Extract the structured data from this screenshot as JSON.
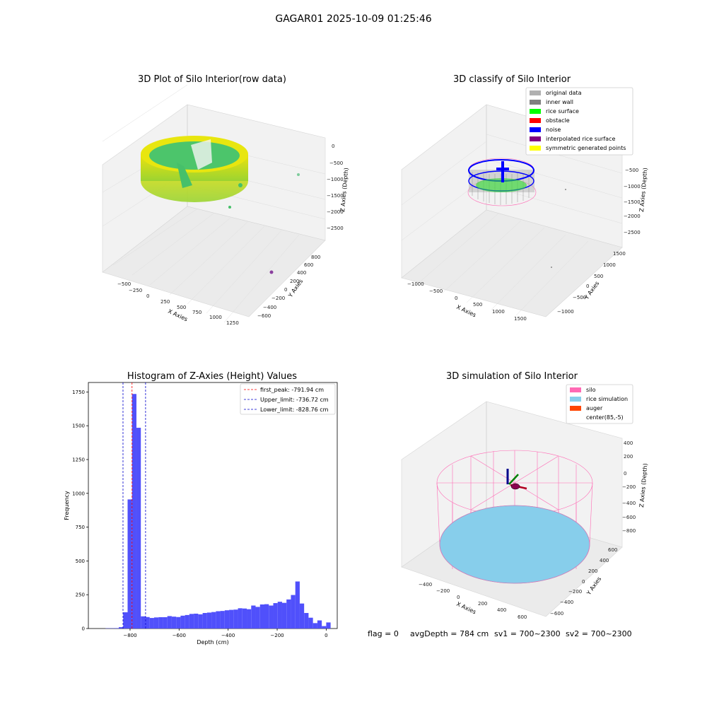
{
  "figure": {
    "suptitle": "GAGAR01 2025-10-09 01:25:46",
    "footer": {
      "flag": "flag = 0",
      "avg_depth": "avgDepth = 784 cm",
      "sv1": "sv1 = 700~2300",
      "sv2": "sv2 = 700~2300"
    }
  },
  "colors": {
    "bar_fill": "#5050fb",
    "bar_edge": "#3a3af0",
    "first_peak_line": "#ff0000",
    "limit_line": "#0000cc",
    "rice_green": "#34c26a",
    "rice_yellow": "#e6e619",
    "silo_pink": "#ff69b4",
    "rice_sim": "#87ceeb",
    "auger": "#ff4500",
    "noise_blue": "#0000ff",
    "inner_wall_gray": "#888888"
  },
  "panel1": {
    "title": "3D Plot of Silo Interior(row data)",
    "xlabel": "X Axies",
    "ylabel": "Y Axies",
    "zlabel": "Z Axies (Depth)",
    "xticks": [
      "−500",
      "−250",
      "0",
      "250",
      "500",
      "750",
      "1000",
      "1250"
    ],
    "yticks": [
      "−600",
      "−400",
      "−200",
      "0",
      "200",
      "400",
      "600",
      "800"
    ],
    "zticks": [
      "0",
      "−500",
      "−1000",
      "−1500",
      "−2000",
      "−2500"
    ]
  },
  "panel2": {
    "title": "3D classify of Silo Interior",
    "xlabel": "X Axies",
    "ylabel": "Y Axies",
    "zlabel": "Z Axies (Depth)",
    "xticks": [
      "−1000",
      "−500",
      "0",
      "500",
      "1000",
      "1500"
    ],
    "yticks": [
      "−1000",
      "−500",
      "0",
      "500",
      "1000",
      "1500"
    ],
    "zticks": [
      "0",
      "−500",
      "−1000",
      "−1500",
      "−2000",
      "−2500"
    ],
    "legend": [
      {
        "label": "original data",
        "color": "#b0b0b0"
      },
      {
        "label": "inner wall",
        "color": "#808080"
      },
      {
        "label": "rice surface",
        "color": "#00ff00"
      },
      {
        "label": "obstacle",
        "color": "#ff0000"
      },
      {
        "label": "noise",
        "color": "#0000ff"
      },
      {
        "label": "interpolated rice surface",
        "color": "#800080"
      },
      {
        "label": "symmetric generated points",
        "color": "#ffff00"
      }
    ]
  },
  "panel4": {
    "title": "3D simulation of Silo Interior",
    "xlabel": "X Axies",
    "ylabel": "Y Axies",
    "zlabel": "Z Axies (Depth)",
    "xticks": [
      "−400",
      "−200",
      "0",
      "200",
      "400",
      "600"
    ],
    "yticks": [
      "−600",
      "−400",
      "−200",
      "0",
      "200",
      "400",
      "600"
    ],
    "zticks": [
      "400",
      "200",
      "0",
      "−200",
      "−400",
      "−600",
      "−800"
    ],
    "legend": [
      {
        "label": "silo",
        "color": "#ff69b4"
      },
      {
        "label": "rice simulation",
        "color": "#87ceeb"
      },
      {
        "label": "auger",
        "color": "#ff4500"
      },
      {
        "label": "center(85,-5)",
        "color": ""
      }
    ]
  },
  "chart_data": [
    {
      "type": "bar",
      "title": "Histogram of Z-Axies (Height) Values",
      "xlabel": "Depth (cm)",
      "ylabel": "Frequency",
      "xlim": [
        -970,
        45
      ],
      "ylim": [
        0,
        1820
      ],
      "xticks": [
        -800,
        -600,
        -400,
        -200,
        0
      ],
      "yticks": [
        0,
        250,
        500,
        750,
        1000,
        1250,
        1500,
        1750
      ],
      "bin_width": 18,
      "bins": [
        {
          "x": -900,
          "value": 2
        },
        {
          "x": -882,
          "value": 2
        },
        {
          "x": -864,
          "value": 3
        },
        {
          "x": -846,
          "value": 10
        },
        {
          "x": -828,
          "value": 120
        },
        {
          "x": -810,
          "value": 955
        },
        {
          "x": -792,
          "value": 1735
        },
        {
          "x": -774,
          "value": 1485
        },
        {
          "x": -756,
          "value": 90
        },
        {
          "x": -738,
          "value": 85
        },
        {
          "x": -720,
          "value": 78
        },
        {
          "x": -702,
          "value": 82
        },
        {
          "x": -684,
          "value": 84
        },
        {
          "x": -666,
          "value": 84
        },
        {
          "x": -648,
          "value": 92
        },
        {
          "x": -630,
          "value": 88
        },
        {
          "x": -612,
          "value": 85
        },
        {
          "x": -594,
          "value": 95
        },
        {
          "x": -576,
          "value": 100
        },
        {
          "x": -558,
          "value": 108
        },
        {
          "x": -540,
          "value": 110
        },
        {
          "x": -522,
          "value": 105
        },
        {
          "x": -504,
          "value": 115
        },
        {
          "x": -486,
          "value": 118
        },
        {
          "x": -468,
          "value": 122
        },
        {
          "x": -450,
          "value": 128
        },
        {
          "x": -432,
          "value": 130
        },
        {
          "x": -414,
          "value": 135
        },
        {
          "x": -396,
          "value": 138
        },
        {
          "x": -378,
          "value": 140
        },
        {
          "x": -360,
          "value": 150
        },
        {
          "x": -342,
          "value": 148
        },
        {
          "x": -324,
          "value": 143
        },
        {
          "x": -306,
          "value": 170
        },
        {
          "x": -288,
          "value": 160
        },
        {
          "x": -270,
          "value": 178
        },
        {
          "x": -252,
          "value": 180
        },
        {
          "x": -234,
          "value": 170
        },
        {
          "x": -216,
          "value": 188
        },
        {
          "x": -198,
          "value": 198
        },
        {
          "x": -180,
          "value": 190
        },
        {
          "x": -162,
          "value": 215
        },
        {
          "x": -144,
          "value": 248
        },
        {
          "x": -126,
          "value": 348
        },
        {
          "x": -108,
          "value": 185
        },
        {
          "x": -90,
          "value": 115
        },
        {
          "x": -72,
          "value": 80
        },
        {
          "x": -54,
          "value": 40
        },
        {
          "x": -36,
          "value": 60
        },
        {
          "x": -18,
          "value": 18
        },
        {
          "x": 0,
          "value": 45
        }
      ],
      "vlines": [
        {
          "name": "first_peak",
          "label": "first_peak: -791.94 cm",
          "x": -791.94,
          "color": "#ff0000"
        },
        {
          "name": "upper",
          "label": "Upper_limit: -736.72 cm",
          "x": -736.72,
          "color": "#0000cc"
        },
        {
          "name": "lower",
          "label": "Lower_limit: -828.76 cm",
          "x": -828.76,
          "color": "#0000cc"
        }
      ],
      "legend_position": "upper-right",
      "grid": false
    }
  ]
}
